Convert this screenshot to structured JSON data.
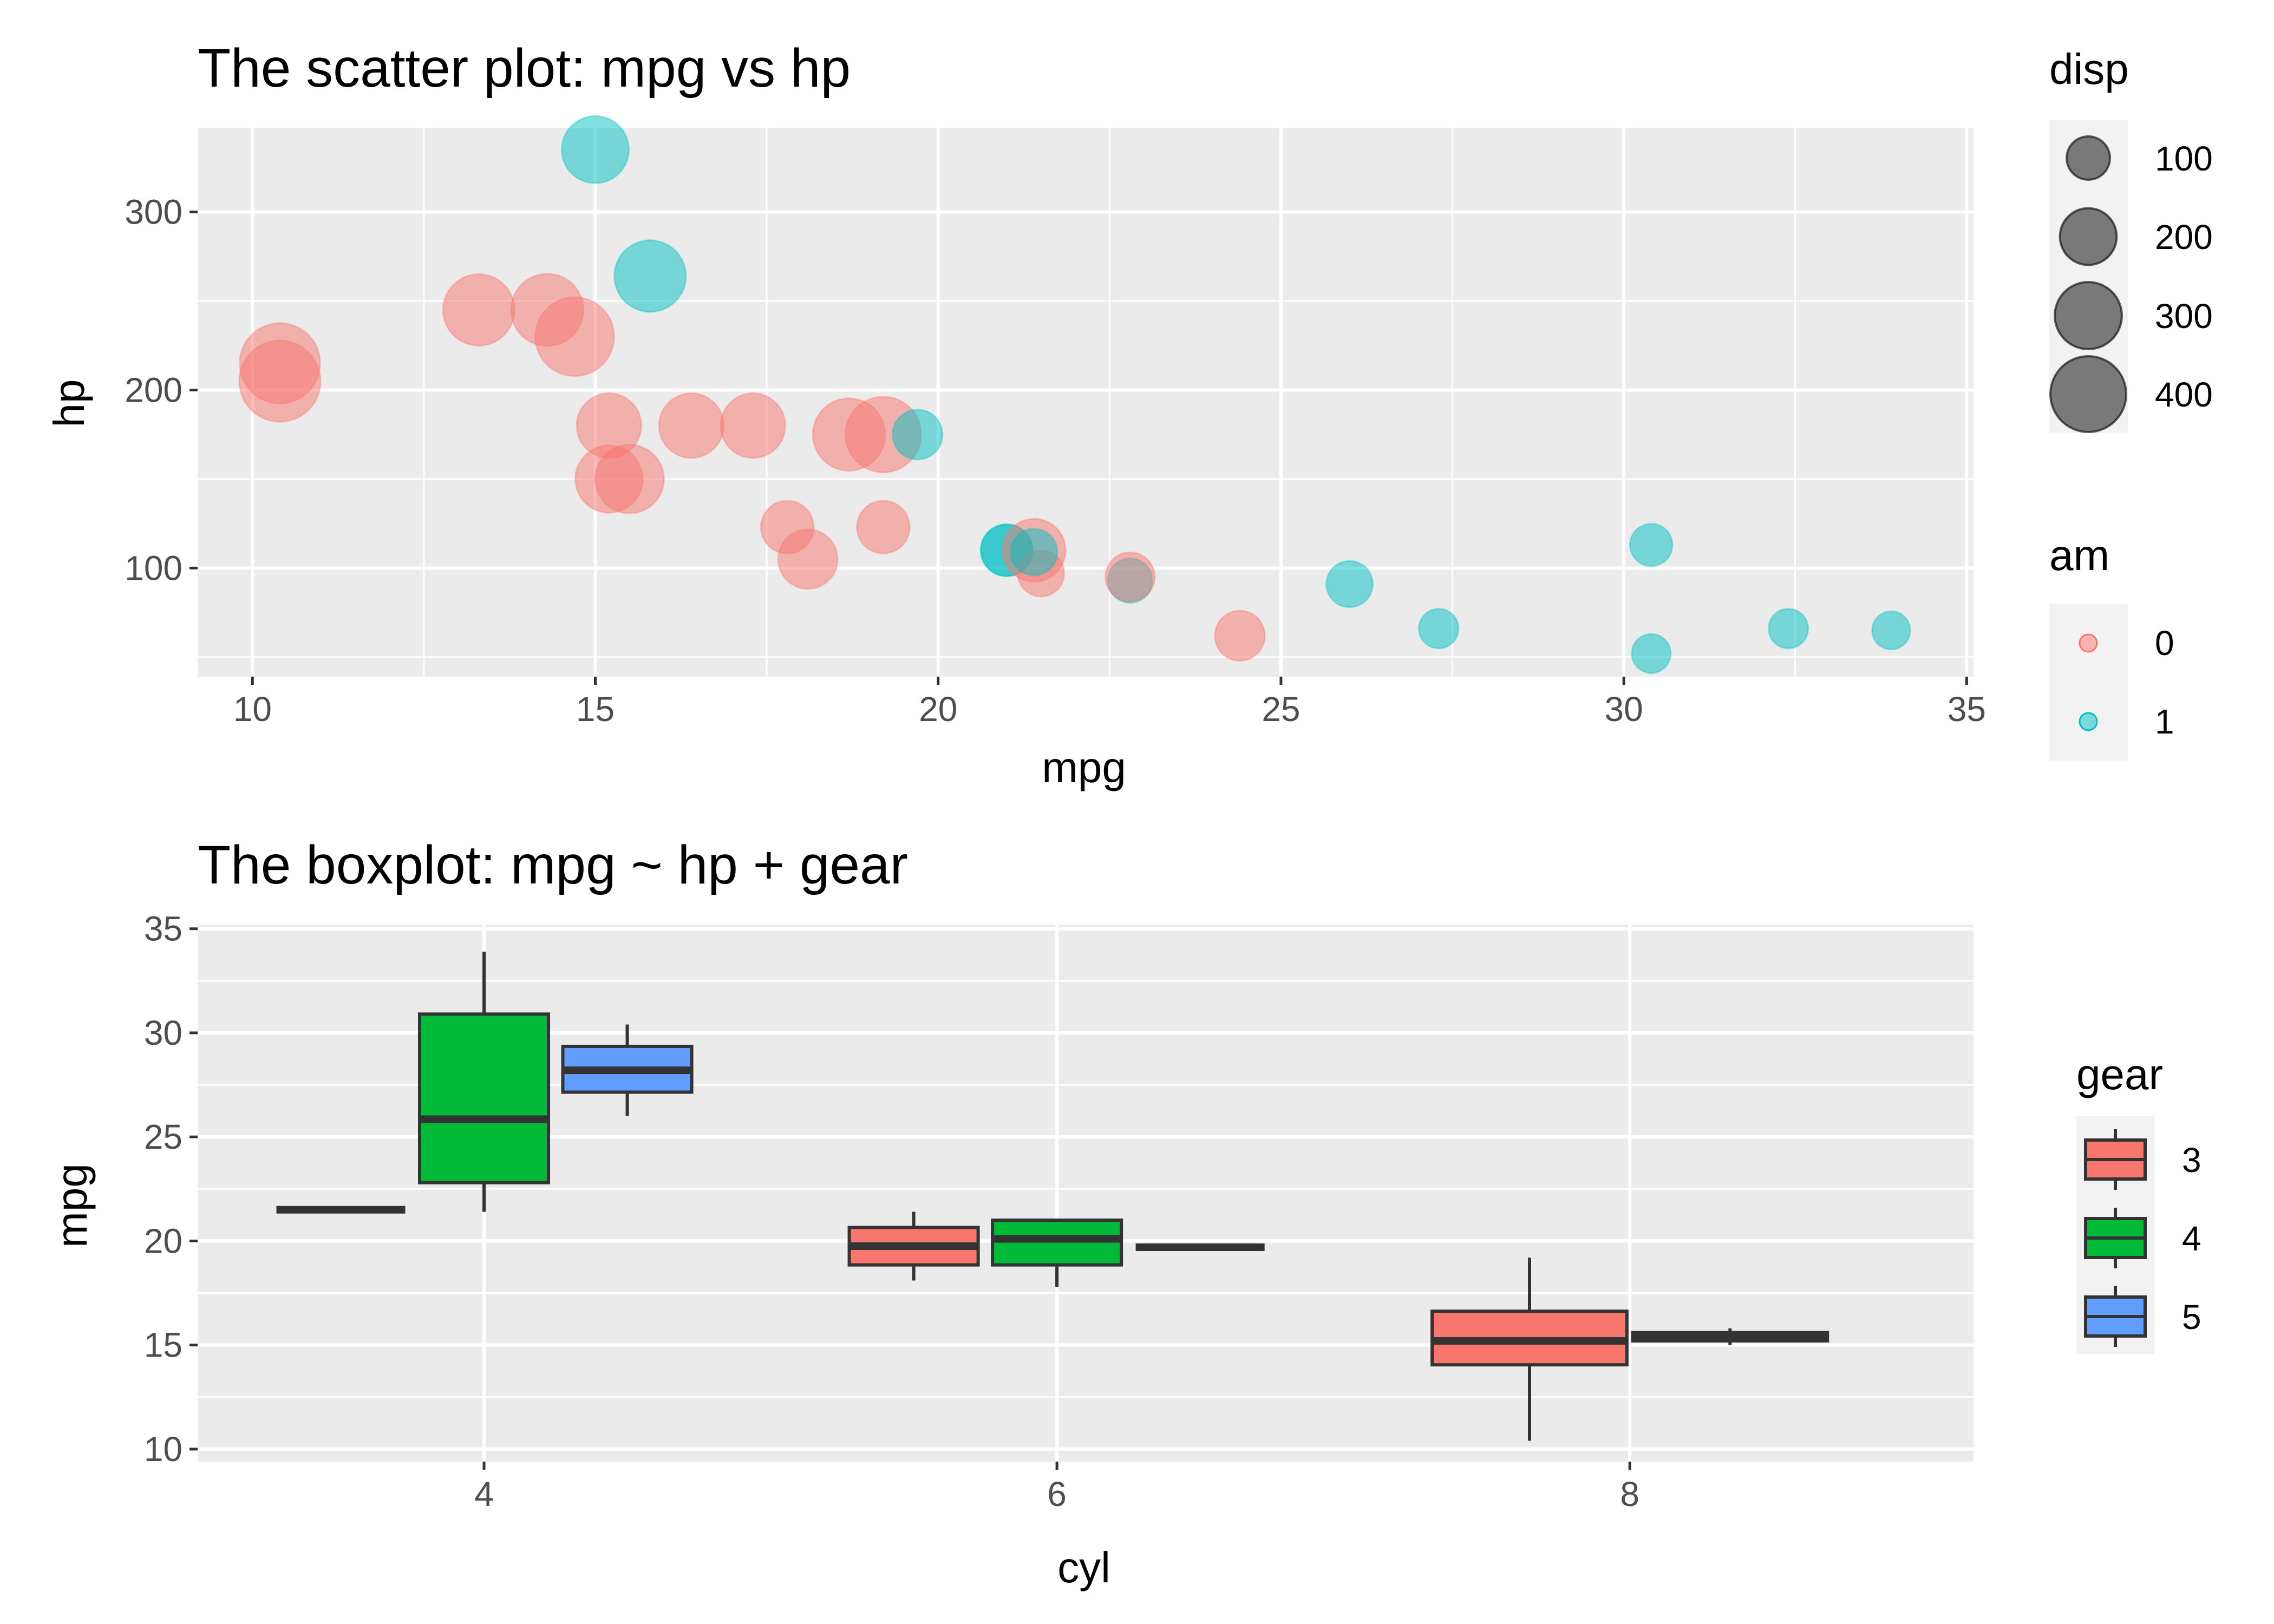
{
  "colors": {
    "panel_bg": "#ebebeb",
    "grid": "#ffffff",
    "am_0": "#F8766D",
    "am_1": "#00BFC4",
    "gear_3": "#F8766D",
    "gear_4": "#00BA38",
    "gear_5": "#619CFF",
    "box_outline": "#333333",
    "size_key": "#000000"
  },
  "chart_data": [
    {
      "type": "scatter",
      "title": "The scatter plot: mpg vs hp",
      "xlabel": "mpg",
      "ylabel": "hp",
      "xlim": [
        9.2,
        35.1
      ],
      "ylim": [
        39,
        347
      ],
      "x_ticks": [
        10,
        15,
        20,
        25,
        30,
        35
      ],
      "y_ticks": [
        100,
        200,
        300
      ],
      "grid": true,
      "point_alpha": 0.5,
      "color_by": "am",
      "size_by": "disp",
      "legends": [
        {
          "title": "disp",
          "kind": "size",
          "labels": [
            "100",
            "200",
            "300",
            "400"
          ],
          "values": [
            100,
            200,
            300,
            400
          ]
        },
        {
          "title": "am",
          "kind": "color",
          "labels": [
            "0",
            "1"
          ],
          "values": [
            0,
            1
          ]
        }
      ],
      "points": [
        {
          "mpg": 21.0,
          "hp": 110,
          "disp": 160,
          "am": 1
        },
        {
          "mpg": 21.0,
          "hp": 110,
          "disp": 160,
          "am": 1
        },
        {
          "mpg": 22.8,
          "hp": 93,
          "disp": 108,
          "am": 1
        },
        {
          "mpg": 21.4,
          "hp": 110,
          "disp": 258,
          "am": 0
        },
        {
          "mpg": 18.7,
          "hp": 175,
          "disp": 360,
          "am": 0
        },
        {
          "mpg": 18.1,
          "hp": 105,
          "disp": 225,
          "am": 0
        },
        {
          "mpg": 14.3,
          "hp": 245,
          "disp": 360,
          "am": 0
        },
        {
          "mpg": 24.4,
          "hp": 62,
          "disp": 146.7,
          "am": 0
        },
        {
          "mpg": 22.8,
          "hp": 95,
          "disp": 140.8,
          "am": 0
        },
        {
          "mpg": 19.2,
          "hp": 123,
          "disp": 167.6,
          "am": 0
        },
        {
          "mpg": 17.8,
          "hp": 123,
          "disp": 167.6,
          "am": 0
        },
        {
          "mpg": 16.4,
          "hp": 180,
          "disp": 275.8,
          "am": 0
        },
        {
          "mpg": 17.3,
          "hp": 180,
          "disp": 275.8,
          "am": 0
        },
        {
          "mpg": 15.2,
          "hp": 180,
          "disp": 275.8,
          "am": 0
        },
        {
          "mpg": 10.4,
          "hp": 205,
          "disp": 472,
          "am": 0
        },
        {
          "mpg": 10.4,
          "hp": 215,
          "disp": 460,
          "am": 0
        },
        {
          "mpg": 14.7,
          "hp": 230,
          "disp": 440,
          "am": 0
        },
        {
          "mpg": 32.4,
          "hp": 66,
          "disp": 78.7,
          "am": 1
        },
        {
          "mpg": 30.4,
          "hp": 52,
          "disp": 75.7,
          "am": 1
        },
        {
          "mpg": 33.9,
          "hp": 65,
          "disp": 71.1,
          "am": 1
        },
        {
          "mpg": 21.5,
          "hp": 97,
          "disp": 120.1,
          "am": 0
        },
        {
          "mpg": 15.5,
          "hp": 150,
          "disp": 318,
          "am": 0
        },
        {
          "mpg": 15.2,
          "hp": 150,
          "disp": 304,
          "am": 0
        },
        {
          "mpg": 13.3,
          "hp": 245,
          "disp": 350,
          "am": 0
        },
        {
          "mpg": 19.2,
          "hp": 175,
          "disp": 400,
          "am": 0
        },
        {
          "mpg": 27.3,
          "hp": 66,
          "disp": 79,
          "am": 1
        },
        {
          "mpg": 26.0,
          "hp": 91,
          "disp": 120.3,
          "am": 1
        },
        {
          "mpg": 30.4,
          "hp": 113,
          "disp": 95.1,
          "am": 1
        },
        {
          "mpg": 15.8,
          "hp": 264,
          "disp": 351,
          "am": 1
        },
        {
          "mpg": 19.7,
          "hp": 175,
          "disp": 145,
          "am": 1
        },
        {
          "mpg": 15.0,
          "hp": 335,
          "disp": 301,
          "am": 1
        },
        {
          "mpg": 21.4,
          "hp": 109,
          "disp": 121,
          "am": 1
        }
      ]
    },
    {
      "type": "box",
      "title": "The boxplot: mpg ~ hp + gear",
      "xlabel": "cyl",
      "ylabel": "mpg",
      "categories": [
        "4",
        "6",
        "8"
      ],
      "xlim": [
        3,
        9.2
      ],
      "ylim": [
        9.4,
        35.2
      ],
      "y_ticks": [
        10,
        15,
        20,
        25,
        30,
        35
      ],
      "grid": true,
      "legend": {
        "title": "gear",
        "labels": [
          "3",
          "4",
          "5"
        ]
      },
      "boxes": [
        {
          "cyl": 4,
          "gear": 3,
          "min": 21.5,
          "q1": 21.5,
          "median": 21.5,
          "q3": 21.5,
          "max": 21.5
        },
        {
          "cyl": 4,
          "gear": 4,
          "min": 21.4,
          "q1": 22.8,
          "median": 25.85,
          "q3": 30.9,
          "max": 33.9
        },
        {
          "cyl": 4,
          "gear": 5,
          "min": 26.0,
          "q1": 27.15,
          "median": 28.2,
          "q3": 29.35,
          "max": 30.4
        },
        {
          "cyl": 6,
          "gear": 3,
          "min": 18.1,
          "q1": 18.85,
          "median": 19.75,
          "q3": 20.65,
          "max": 21.4
        },
        {
          "cyl": 6,
          "gear": 4,
          "min": 17.8,
          "q1": 18.85,
          "median": 20.1,
          "q3": 21.0,
          "max": 21.0
        },
        {
          "cyl": 6,
          "gear": 5,
          "min": 19.7,
          "q1": 19.7,
          "median": 19.7,
          "q3": 19.7,
          "max": 19.7
        },
        {
          "cyl": 8,
          "gear": 3,
          "min": 10.4,
          "q1": 14.05,
          "median": 15.2,
          "q3": 16.625,
          "max": 19.2
        },
        {
          "cyl": 8,
          "gear": 5,
          "min": 15.0,
          "q1": 15.2,
          "median": 15.4,
          "q3": 15.6,
          "max": 15.8
        }
      ]
    }
  ]
}
